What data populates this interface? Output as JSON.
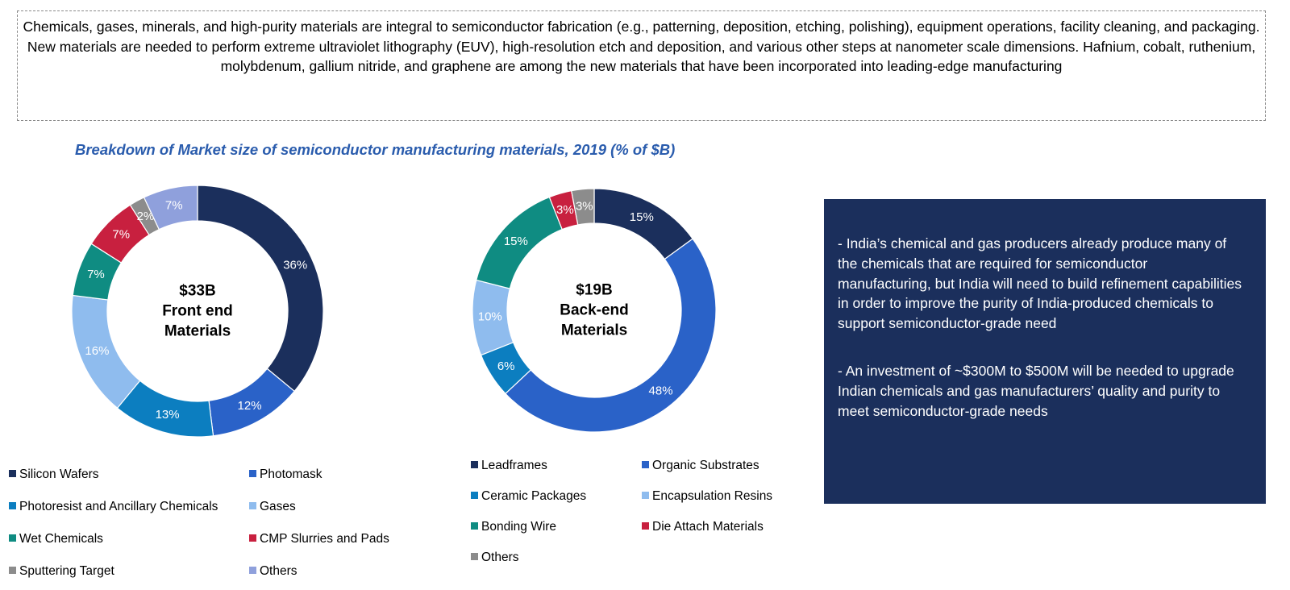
{
  "intro": {
    "paragraph1": "Chemicals, gases, minerals, and high-purity materials are integral to semiconductor fabrication (e.g., patterning, deposition, etching, polishing), equipment operations, facility cleaning, and packaging.",
    "paragraph2": "New materials are needed to perform extreme ultraviolet lithography (EUV), high-resolution etch and deposition, and various other steps at nanometer scale dimensions. Hafnium, cobalt, ruthenium, molybdenum, gallium nitride, and graphene are among the new materials that have been incorporated into leading-edge manufacturing"
  },
  "chart_title": "Breakdown of Market size of semiconductor manufacturing materials, 2019 (% of $B)",
  "chart_data": [
    {
      "type": "pie",
      "variant": "donut",
      "title": "$33B Front end Materials",
      "center_lines": [
        "$33B",
        "Front end",
        "Materials"
      ],
      "total_billion_usd": 33,
      "categories": [
        "Silicon Wafers",
        "Photomask",
        "Photoresist and Ancillary Chemicals",
        "Gases",
        "Wet Chemicals",
        "CMP Slurries and Pads",
        "Sputtering Target",
        "Others"
      ],
      "values": [
        36,
        12,
        13,
        16,
        7,
        7,
        2,
        7
      ],
      "labels": [
        "36%",
        "12%",
        "13%",
        "16%",
        "7%",
        "7%",
        "2%",
        "7%"
      ],
      "colors": [
        "#1b2f5c",
        "#2a62c8",
        "#0c7ec0",
        "#8fbcee",
        "#0f8c82",
        "#c8203f",
        "#8c8c8c",
        "#8fa0dc"
      ],
      "label_colors": [
        "#ffffff",
        "#ffffff",
        "#ffffff",
        "#ffffff",
        "#ffffff",
        "#ffffff",
        "#ffffff",
        "#ffffff"
      ],
      "legend_columns": 2
    },
    {
      "type": "pie",
      "variant": "donut",
      "title": "$19B Back-end Materials",
      "center_lines": [
        "$19B",
        "Back-end",
        "Materials"
      ],
      "total_billion_usd": 19,
      "categories": [
        "Leadframes",
        "Organic Substrates",
        "Ceramic Packages",
        "Encapsulation Resins",
        "Bonding Wire",
        "Die Attach Materials",
        "Others"
      ],
      "values": [
        15,
        48,
        6,
        10,
        15,
        3,
        3
      ],
      "labels": [
        "15%",
        "48%",
        "6%",
        "10%",
        "15%",
        "3%",
        "3%"
      ],
      "colors": [
        "#1b2f5c",
        "#2a62c8",
        "#0c7ec0",
        "#8fbcee",
        "#0f8c82",
        "#c8203f",
        "#8c8c8c"
      ],
      "label_colors": [
        "#ffffff",
        "#ffffff",
        "#ffffff",
        "#ffffff",
        "#ffffff",
        "#ffffff",
        "#ffffff"
      ],
      "legend_columns": 2
    }
  ],
  "callout": {
    "point1": "- India’s chemical and gas producers already produce many of the chemicals that are required for semiconductor manufacturing, but India will need to build refinement capabilities in order to improve the purity of India-produced chemicals to support semiconductor-grade need",
    "point2": "- An investment of ~$300M to $500M will be needed to upgrade Indian chemicals and gas manufacturers’ quality and purity to meet semiconductor-grade needs"
  }
}
